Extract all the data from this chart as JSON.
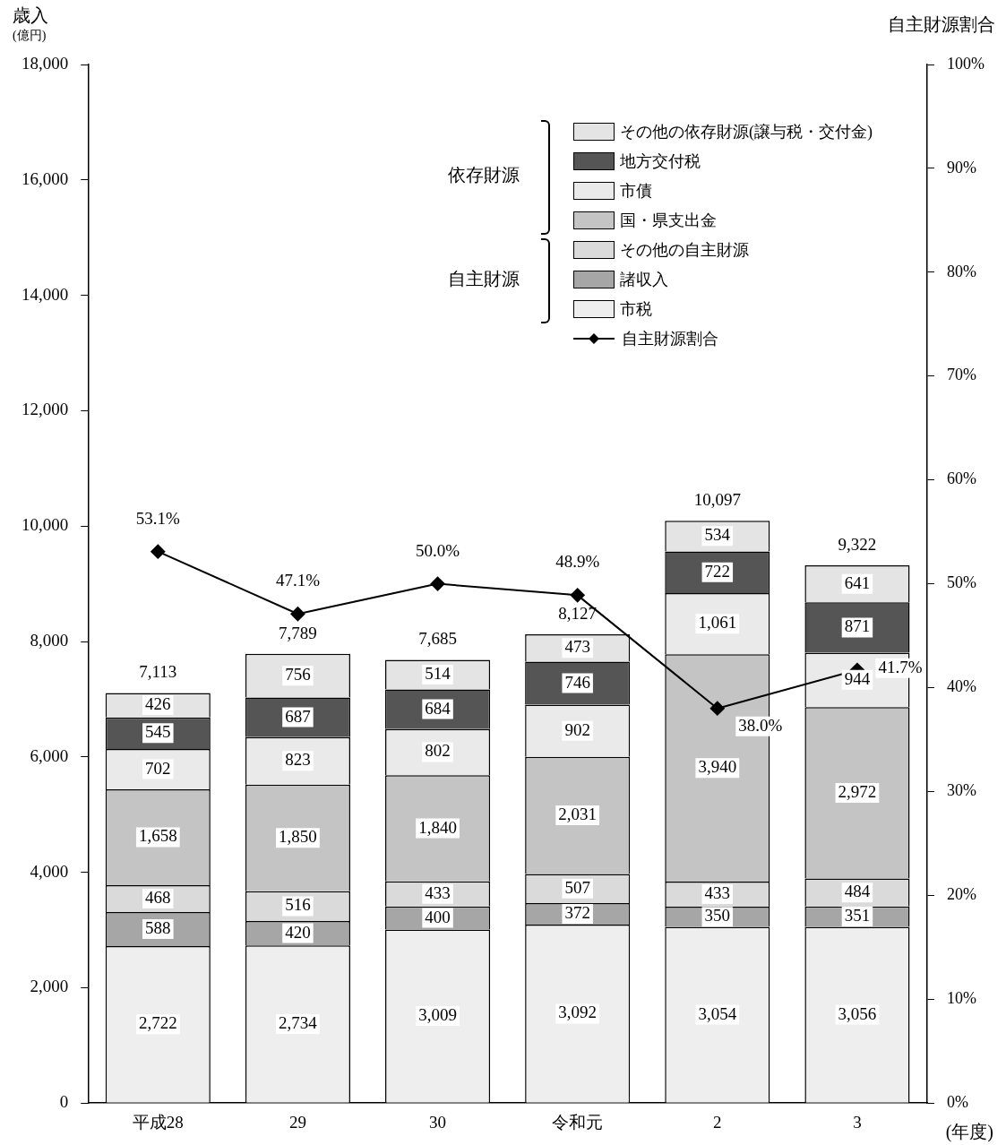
{
  "chart_data": {
    "type": "bar",
    "stacked": true,
    "categories": [
      "平成28",
      "29",
      "30",
      "令和元",
      "2",
      "3"
    ],
    "xlabel": "(年度)",
    "ylabel": "歳入 (億円)",
    "y2label": "自主財源割合",
    "ylim": [
      0,
      18000
    ],
    "yticks": [
      {
        "value": 0,
        "label": "0"
      },
      {
        "value": 2000,
        "label": "2,000"
      },
      {
        "value": 4000,
        "label": "4,000"
      },
      {
        "value": 6000,
        "label": "6,000"
      },
      {
        "value": 8000,
        "label": "8,000"
      },
      {
        "value": 10000,
        "label": "10,000"
      },
      {
        "value": 12000,
        "label": "12,000"
      },
      {
        "value": 14000,
        "label": "14,000"
      },
      {
        "value": 16000,
        "label": "16,000"
      },
      {
        "value": 18000,
        "label": "18,000"
      }
    ],
    "y2lim": [
      0,
      100
    ],
    "y2ticks": [
      {
        "value": 0,
        "label": "0%"
      },
      {
        "value": 10,
        "label": "10%"
      },
      {
        "value": 20,
        "label": "20%"
      },
      {
        "value": 30,
        "label": "30%"
      },
      {
        "value": 40,
        "label": "40%"
      },
      {
        "value": 50,
        "label": "50%"
      },
      {
        "value": 60,
        "label": "60%"
      },
      {
        "value": 70,
        "label": "70%"
      },
      {
        "value": 80,
        "label": "80%"
      },
      {
        "value": 90,
        "label": "90%"
      },
      {
        "value": 100,
        "label": "100%"
      }
    ],
    "grid": false,
    "legend": "top right",
    "annotations": [
      "依存財源",
      "自主財源"
    ],
    "totals": [
      "7,113",
      "7,789",
      "7,685",
      "8,127",
      "10,097",
      "9,322"
    ],
    "series": [
      {
        "name": "市税",
        "color": "#eeeeee",
        "values": [
          2722,
          2734,
          3009,
          3092,
          3054,
          3056
        ],
        "value_labels": [
          "2,722",
          "2,734",
          "3,009",
          "3,092",
          "3,054",
          "3,056"
        ]
      },
      {
        "name": "諸収入",
        "color": "#a6a6a6",
        "values": [
          588,
          420,
          400,
          372,
          350,
          351
        ],
        "value_labels": [
          "588",
          "420",
          "400",
          "372",
          "350",
          "351"
        ]
      },
      {
        "name": "その他の自主財源",
        "color": "#dadada",
        "values": [
          468,
          516,
          433,
          507,
          433,
          484
        ],
        "value_labels": [
          "468",
          "516",
          "433",
          "507",
          "433",
          "484"
        ]
      },
      {
        "name": "国・県支出金",
        "color": "#c4c4c4",
        "values": [
          1658,
          1850,
          1840,
          2031,
          3940,
          2972
        ],
        "value_labels": [
          "1,658",
          "1,850",
          "1,840",
          "2,031",
          "3,940",
          "2,972"
        ]
      },
      {
        "name": "市債",
        "color": "#eaeaea",
        "values": [
          702,
          823,
          802,
          902,
          1061,
          944
        ],
        "value_labels": [
          "702",
          "823",
          "802",
          "902",
          "1,061",
          "944"
        ]
      },
      {
        "name": "地方交付税",
        "color": "#555555",
        "values": [
          545,
          687,
          684,
          746,
          722,
          871
        ],
        "value_labels": [
          "545",
          "687",
          "684",
          "746",
          "722",
          "871"
        ]
      },
      {
        "name": "その他の依存財源(譲与税・交付金)",
        "color": "#e4e4e4",
        "values": [
          426,
          756,
          514,
          473,
          534,
          641
        ],
        "value_labels": [
          "426",
          "756",
          "514",
          "473",
          "534",
          "641"
        ]
      },
      {
        "name": "自主財源割合",
        "type": "line",
        "axis": "y2",
        "color": "#000000",
        "marker": "diamond",
        "values": [
          53.1,
          47.1,
          50.0,
          48.9,
          38.0,
          41.7
        ],
        "value_labels": [
          "53.1%",
          "47.1%",
          "50.0%",
          "48.9%",
          "38.0%",
          "41.7%"
        ]
      }
    ]
  }
}
